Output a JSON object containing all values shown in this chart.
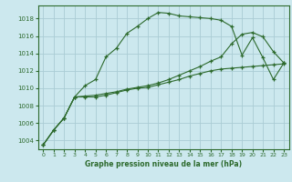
{
  "title": "Graphe pression niveau de la mer (hPa)",
  "background_color": "#cce8ee",
  "grid_color": "#aaccd4",
  "line_color": "#2d6a2d",
  "xlim": [
    -0.5,
    23.5
  ],
  "ylim": [
    1003.0,
    1019.5
  ],
  "yticks": [
    1004,
    1006,
    1008,
    1010,
    1012,
    1014,
    1016,
    1018
  ],
  "xticks": [
    0,
    1,
    2,
    3,
    4,
    5,
    6,
    7,
    8,
    9,
    10,
    11,
    12,
    13,
    14,
    15,
    16,
    17,
    18,
    19,
    20,
    21,
    22,
    23
  ],
  "series1_x": [
    0,
    1,
    2,
    3,
    4,
    5,
    6,
    7,
    8,
    9,
    10,
    11,
    12,
    13,
    14,
    15,
    16,
    17,
    18,
    19,
    20,
    21,
    22,
    23
  ],
  "series1_y": [
    1003.5,
    1005.2,
    1006.6,
    1009.0,
    1010.3,
    1011.0,
    1013.6,
    1014.6,
    1016.3,
    1017.1,
    1018.0,
    1018.7,
    1018.6,
    1018.3,
    1018.2,
    1018.1,
    1018.0,
    1017.8,
    1017.1,
    1013.8,
    1015.8,
    1013.5,
    1011.0,
    1012.9
  ],
  "series2_x": [
    0,
    1,
    2,
    3,
    4,
    5,
    6,
    7,
    8,
    9,
    10,
    11,
    12,
    13,
    14,
    15,
    16,
    17,
    18,
    19,
    20,
    21,
    22,
    23
  ],
  "series2_y": [
    1003.5,
    1005.2,
    1006.6,
    1009.0,
    1009.0,
    1009.0,
    1009.2,
    1009.5,
    1009.8,
    1010.0,
    1010.1,
    1010.4,
    1010.7,
    1011.0,
    1011.4,
    1011.7,
    1012.0,
    1012.2,
    1012.3,
    1012.4,
    1012.5,
    1012.6,
    1012.7,
    1012.8
  ],
  "series3_x": [
    0,
    1,
    2,
    3,
    4,
    5,
    6,
    7,
    8,
    9,
    10,
    11,
    12,
    13,
    14,
    15,
    16,
    17,
    18,
    19,
    20,
    21,
    22,
    23
  ],
  "series3_y": [
    1003.5,
    1005.2,
    1006.6,
    1009.0,
    1009.1,
    1009.2,
    1009.4,
    1009.6,
    1009.9,
    1010.1,
    1010.3,
    1010.6,
    1011.0,
    1011.5,
    1012.0,
    1012.5,
    1013.1,
    1013.6,
    1015.1,
    1016.2,
    1016.4,
    1015.9,
    1014.2,
    1012.9
  ]
}
